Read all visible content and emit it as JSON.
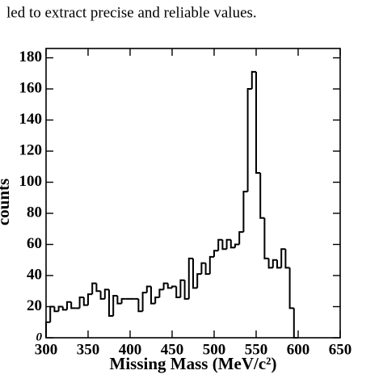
{
  "caption_text": "led to extract precise and reliable values.",
  "chart_data": {
    "type": "histogram",
    "xlabel": "Missing Mass (MeV/c²)",
    "ylabel": "counts",
    "bins": [
      300,
      305,
      310,
      315,
      320,
      325,
      330,
      335,
      340,
      345,
      350,
      355,
      360,
      365,
      370,
      375,
      380,
      385,
      390,
      395,
      400,
      405,
      410,
      415,
      420,
      425,
      430,
      435,
      440,
      445,
      450,
      455,
      460,
      465,
      470,
      475,
      480,
      485,
      490,
      495,
      500,
      505,
      510,
      515,
      520,
      525,
      530,
      535,
      540,
      545,
      550,
      555,
      560,
      565,
      570,
      575,
      580,
      585,
      590,
      595,
      600
    ],
    "values": [
      10,
      20,
      17,
      20,
      18,
      23,
      19,
      19,
      26,
      21,
      28,
      35,
      30,
      25,
      31,
      14,
      27,
      22,
      25,
      25,
      25,
      25,
      17,
      29,
      33,
      22,
      26,
      31,
      35,
      32,
      33,
      26,
      37,
      25,
      51,
      32,
      41,
      48,
      41,
      52,
      56,
      63,
      57,
      63,
      58,
      60,
      68,
      94,
      160,
      171,
      106,
      77,
      51,
      45,
      50,
      45,
      57,
      45,
      19,
      0
    ],
    "color": "#000000",
    "xlim": [
      300,
      650
    ],
    "ylim": [
      0,
      186
    ],
    "xticks": [
      300,
      350,
      400,
      450,
      500,
      550,
      600,
      650
    ],
    "yticks": [
      0,
      20,
      40,
      60,
      80,
      100,
      120,
      140,
      160,
      180
    ]
  }
}
